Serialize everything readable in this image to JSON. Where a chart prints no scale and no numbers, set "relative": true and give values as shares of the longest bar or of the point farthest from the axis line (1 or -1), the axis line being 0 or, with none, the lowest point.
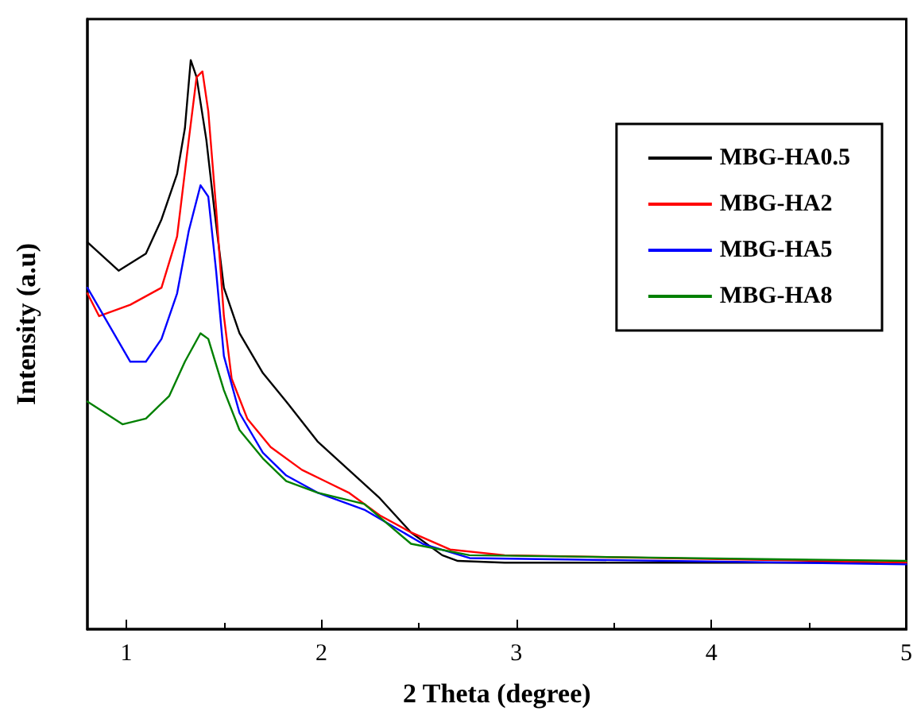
{
  "chart_data": {
    "type": "line",
    "relative": true,
    "xlabel": "2 Theta (degree)",
    "ylabel": "Intensity (a.u)",
    "xlim": [
      0.8,
      5
    ],
    "xticks": [
      1,
      2,
      3,
      4,
      5
    ],
    "legend": "top right",
    "grid": false,
    "marker": "none",
    "line_style": "solid",
    "tick_labels": "x",
    "series": [
      {
        "name": "MBG-HA0.5",
        "color": "#000000",
        "x": [
          0.8,
          0.96,
          1.1,
          1.18,
          1.26,
          1.3,
          1.33,
          1.36,
          1.41,
          1.45,
          1.5,
          1.58,
          1.7,
          1.82,
          1.98,
          2.14,
          2.3,
          2.46,
          2.62,
          2.7,
          2.94,
          3.58,
          5
        ],
        "values": [
          0.68,
          0.63,
          0.66,
          0.72,
          0.8,
          0.88,
          1,
          0.97,
          0.86,
          0.74,
          0.6,
          0.52,
          0.45,
          0.4,
          0.33,
          0.28,
          0.23,
          0.17,
          0.13,
          0.12,
          0.117,
          0.117,
          0.117
        ]
      },
      {
        "name": "MBG-HA2",
        "color": "#ff0000",
        "x": [
          0.8,
          0.86,
          1.02,
          1.18,
          1.26,
          1.32,
          1.36,
          1.39,
          1.42,
          1.46,
          1.5,
          1.54,
          1.62,
          1.74,
          1.9,
          2.02,
          2.14,
          2.3,
          2.46,
          2.66,
          2.94,
          5
        ],
        "values": [
          0.59,
          0.55,
          0.57,
          0.6,
          0.69,
          0.86,
          0.97,
          0.98,
          0.91,
          0.74,
          0.55,
          0.44,
          0.37,
          0.32,
          0.28,
          0.26,
          0.24,
          0.2,
          0.17,
          0.14,
          0.13,
          0.117
        ]
      },
      {
        "name": "MBG-HA5",
        "color": "#0000ff",
        "x": [
          0.8,
          1.02,
          1.1,
          1.18,
          1.26,
          1.32,
          1.38,
          1.42,
          1.46,
          1.5,
          1.58,
          1.7,
          1.82,
          1.98,
          2.22,
          2.52,
          2.76,
          5
        ],
        "values": [
          0.6,
          0.47,
          0.47,
          0.51,
          0.59,
          0.7,
          0.78,
          0.76,
          0.63,
          0.48,
          0.38,
          0.31,
          0.27,
          0.24,
          0.21,
          0.15,
          0.125,
          0.114
        ]
      },
      {
        "name": "MBG-HA8",
        "color": "#008000",
        "x": [
          0.8,
          0.98,
          1.1,
          1.22,
          1.3,
          1.38,
          1.42,
          1.5,
          1.58,
          1.7,
          1.82,
          1.98,
          2.22,
          2.46,
          2.76,
          5
        ],
        "values": [
          0.4,
          0.36,
          0.37,
          0.41,
          0.47,
          0.52,
          0.51,
          0.42,
          0.35,
          0.3,
          0.26,
          0.24,
          0.22,
          0.15,
          0.13,
          0.12
        ]
      }
    ]
  }
}
